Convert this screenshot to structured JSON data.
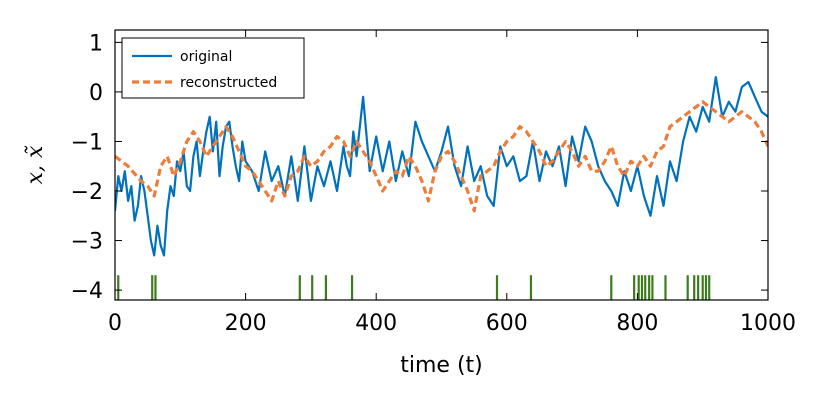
{
  "chart_data": {
    "type": "line",
    "xlabel": "time (t)",
    "ylabel": "x, x̃",
    "xlim": [
      0,
      1000
    ],
    "ylim": [
      -4.2,
      1.25
    ],
    "xticks": [
      0,
      200,
      400,
      600,
      800,
      1000
    ],
    "yticks": [
      1,
      0,
      -1,
      -2,
      -3,
      -4
    ],
    "ytick_labels": [
      "1",
      "0",
      "−1",
      "−2",
      "−3",
      "−4"
    ],
    "legend": {
      "position": "top-left"
    },
    "series": [
      {
        "name": "original",
        "color": "#0072bd",
        "style": "solid",
        "x": [
          0,
          5,
          10,
          15,
          20,
          25,
          30,
          35,
          40,
          45,
          50,
          55,
          60,
          65,
          70,
          75,
          80,
          85,
          90,
          95,
          100,
          105,
          110,
          115,
          120,
          125,
          130,
          135,
          140,
          145,
          150,
          155,
          160,
          165,
          170,
          175,
          180,
          185,
          190,
          195,
          200,
          210,
          220,
          230,
          240,
          250,
          260,
          270,
          280,
          290,
          300,
          310,
          320,
          330,
          340,
          350,
          355,
          360,
          365,
          370,
          380,
          390,
          400,
          410,
          420,
          430,
          440,
          450,
          460,
          470,
          480,
          490,
          500,
          510,
          520,
          530,
          540,
          550,
          560,
          570,
          580,
          590,
          600,
          610,
          620,
          630,
          640,
          650,
          660,
          670,
          680,
          690,
          700,
          710,
          720,
          730,
          740,
          750,
          760,
          770,
          780,
          790,
          800,
          810,
          820,
          830,
          840,
          850,
          860,
          870,
          880,
          890,
          900,
          910,
          920,
          930,
          940,
          950,
          960,
          970,
          980,
          990,
          1000
        ],
        "values": [
          -2.4,
          -1.7,
          -2.0,
          -1.6,
          -2.2,
          -1.9,
          -2.6,
          -2.3,
          -1.7,
          -2.0,
          -2.5,
          -3.0,
          -3.3,
          -2.7,
          -3.1,
          -3.3,
          -2.4,
          -1.9,
          -2.1,
          -1.4,
          -1.6,
          -1.2,
          -1.9,
          -2.0,
          -1.3,
          -1.0,
          -1.7,
          -1.2,
          -0.8,
          -0.5,
          -1.2,
          -0.6,
          -1.7,
          -1.1,
          -0.7,
          -0.6,
          -1.1,
          -1.5,
          -1.8,
          -1.0,
          -1.4,
          -1.6,
          -2.0,
          -1.2,
          -1.8,
          -1.5,
          -2.1,
          -1.3,
          -2.2,
          -1.1,
          -2.2,
          -1.5,
          -1.9,
          -1.4,
          -2.0,
          -1.1,
          -1.5,
          -1.7,
          -0.8,
          -1.3,
          -0.1,
          -1.6,
          -0.9,
          -1.6,
          -1.0,
          -1.8,
          -1.2,
          -1.7,
          -0.6,
          -1.0,
          -1.3,
          -1.6,
          -1.2,
          -0.7,
          -1.5,
          -1.9,
          -1.1,
          -1.8,
          -1.5,
          -2.1,
          -2.3,
          -1.1,
          -1.5,
          -1.3,
          -1.8,
          -1.7,
          -1.0,
          -1.8,
          -1.2,
          -1.5,
          -1.1,
          -1.9,
          -0.9,
          -1.4,
          -0.7,
          -1.0,
          -1.5,
          -1.8,
          -2.0,
          -2.3,
          -1.6,
          -2.0,
          -1.5,
          -2.1,
          -2.5,
          -1.7,
          -2.3,
          -1.4,
          -1.8,
          -1.0,
          -0.5,
          -0.8,
          -0.3,
          -0.6,
          0.3,
          -0.5,
          -0.2,
          -0.4,
          0.1,
          0.2,
          -0.1,
          -0.4,
          -0.5
        ]
      },
      {
        "name": "reconstructed",
        "color": "#ed7d3a",
        "style": "dashed",
        "x": [
          0,
          20,
          40,
          50,
          60,
          70,
          80,
          90,
          100,
          110,
          120,
          130,
          140,
          150,
          160,
          170,
          180,
          190,
          200,
          210,
          220,
          230,
          240,
          250,
          260,
          270,
          280,
          290,
          300,
          310,
          320,
          330,
          340,
          350,
          360,
          370,
          380,
          390,
          400,
          410,
          420,
          430,
          440,
          450,
          460,
          470,
          480,
          490,
          500,
          510,
          520,
          530,
          540,
          550,
          560,
          570,
          580,
          590,
          600,
          610,
          620,
          630,
          640,
          650,
          660,
          670,
          680,
          690,
          700,
          710,
          720,
          730,
          740,
          750,
          760,
          770,
          780,
          790,
          800,
          810,
          820,
          830,
          840,
          850,
          860,
          870,
          880,
          890,
          900,
          910,
          920,
          930,
          940,
          950,
          960,
          970,
          980,
          990,
          1000
        ],
        "values": [
          -1.3,
          -1.5,
          -1.8,
          -1.9,
          -2.1,
          -1.5,
          -1.3,
          -1.7,
          -1.4,
          -1.0,
          -0.8,
          -1.0,
          -1.3,
          -1.1,
          -0.9,
          -0.7,
          -0.9,
          -1.2,
          -1.5,
          -1.6,
          -1.8,
          -2.0,
          -2.2,
          -1.8,
          -2.1,
          -1.7,
          -1.6,
          -1.3,
          -1.5,
          -1.4,
          -1.2,
          -1.1,
          -0.9,
          -1.0,
          -1.3,
          -1.0,
          -1.2,
          -1.4,
          -1.7,
          -2.0,
          -1.8,
          -1.6,
          -1.7,
          -1.3,
          -1.5,
          -1.8,
          -2.2,
          -1.6,
          -1.3,
          -1.2,
          -1.4,
          -1.7,
          -2.0,
          -2.4,
          -1.7,
          -1.6,
          -1.5,
          -1.2,
          -1.0,
          -0.9,
          -0.7,
          -0.8,
          -1.0,
          -1.2,
          -1.5,
          -1.4,
          -1.2,
          -1.0,
          -1.2,
          -1.5,
          -1.3,
          -1.6,
          -1.6,
          -1.4,
          -1.1,
          -1.5,
          -1.7,
          -1.4,
          -1.5,
          -1.3,
          -1.5,
          -1.2,
          -1.1,
          -0.7,
          -0.6,
          -0.5,
          -0.4,
          -0.3,
          -0.2,
          -0.3,
          -0.4,
          -0.5,
          -0.6,
          -0.5,
          -0.4,
          -0.5,
          -0.6,
          -0.8,
          -1.1
        ]
      }
    ],
    "events": {
      "color": "#3d7c1e",
      "x": [
        5,
        57,
        62,
        283,
        302,
        323,
        363,
        585,
        637,
        760,
        795,
        802,
        807,
        812,
        818,
        823,
        843,
        877,
        887,
        893,
        900,
        905,
        910
      ]
    }
  }
}
